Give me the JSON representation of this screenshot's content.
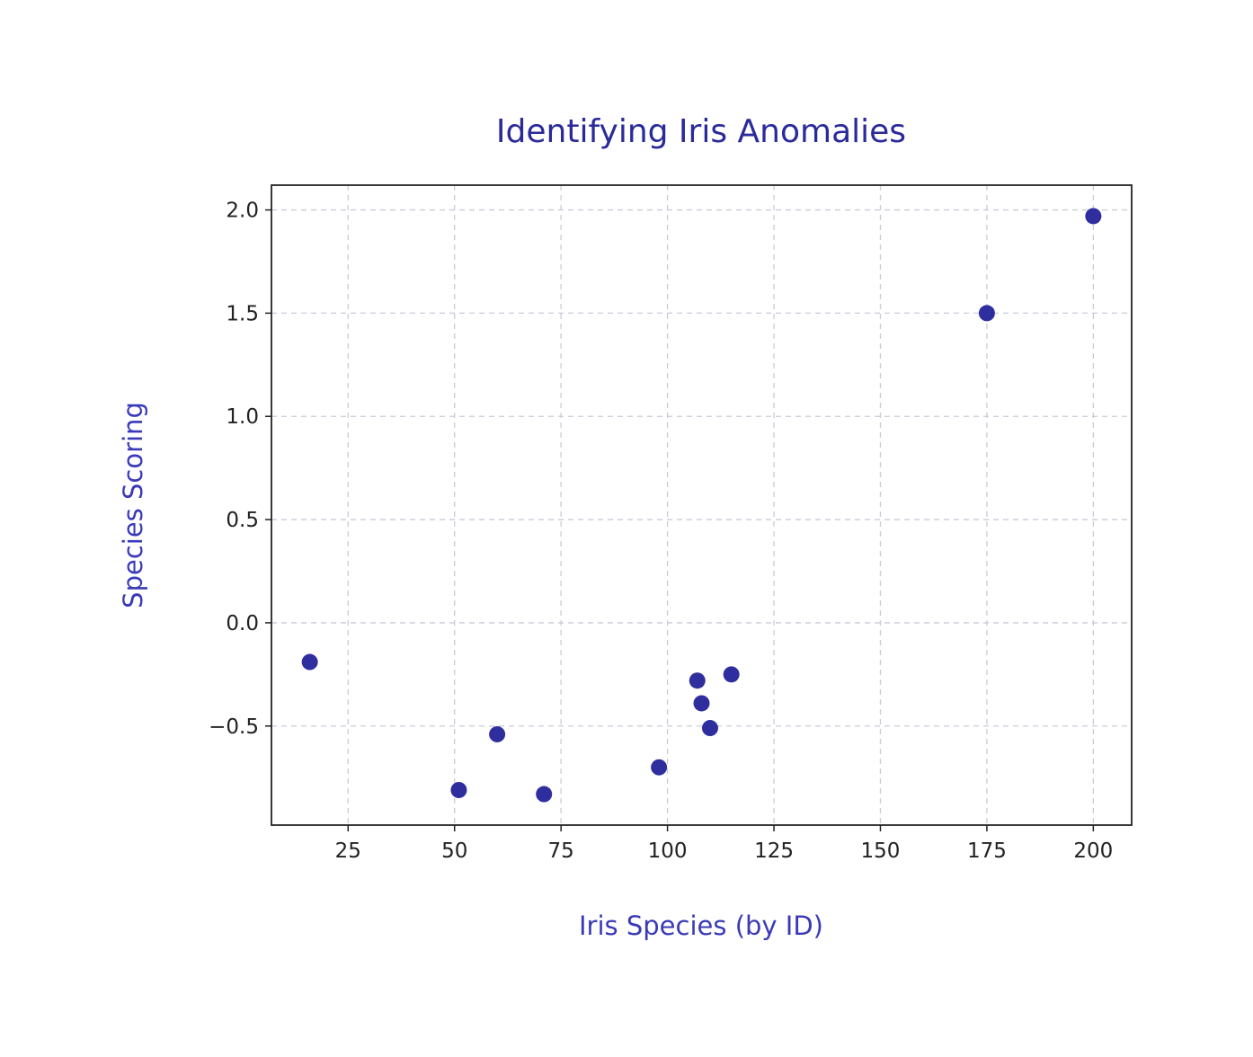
{
  "chart_data": {
    "type": "scatter",
    "title": "Identifying Iris Anomalies",
    "xlabel": "Iris Species (by ID)",
    "ylabel": "Species Scoring",
    "xlim": [
      7,
      209
    ],
    "ylim": [
      -0.98,
      2.12
    ],
    "x_ticks": [
      25,
      50,
      75,
      100,
      125,
      150,
      175,
      200
    ],
    "y_ticks": [
      2.0,
      1.5,
      1.0,
      0.5,
      0.0,
      -0.5
    ],
    "x_tick_labels": [
      "25",
      "50",
      "75",
      "100",
      "125",
      "150",
      "175",
      "200"
    ],
    "y_tick_labels": [
      "2.0",
      "1.5",
      "1.0",
      "0.5",
      "0.0",
      "−0.5"
    ],
    "grid": true,
    "marker_color": "#2e2e9e",
    "points": [
      {
        "x": 16,
        "y": -0.19
      },
      {
        "x": 51,
        "y": -0.81
      },
      {
        "x": 60,
        "y": -0.54
      },
      {
        "x": 71,
        "y": -0.83
      },
      {
        "x": 98,
        "y": -0.7
      },
      {
        "x": 107,
        "y": -0.28
      },
      {
        "x": 108,
        "y": -0.39
      },
      {
        "x": 110,
        "y": -0.51
      },
      {
        "x": 115,
        "y": -0.25
      },
      {
        "x": 175,
        "y": 1.5
      },
      {
        "x": 200,
        "y": 1.97
      }
    ]
  }
}
